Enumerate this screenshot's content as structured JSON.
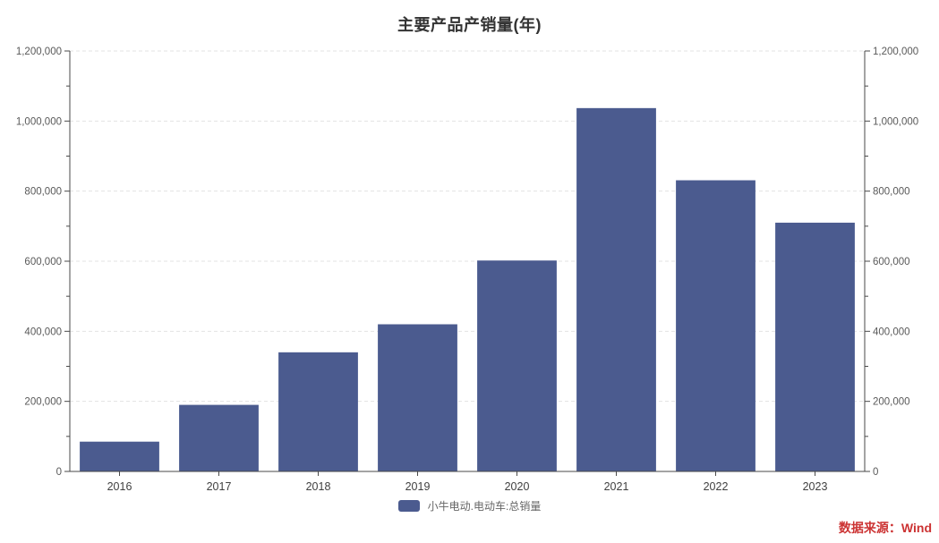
{
  "header": {
    "title": "主要产品产销量(年)"
  },
  "legend": {
    "label": "小牛电动.电动车:总销量"
  },
  "source": {
    "text": "数据来源：Wind"
  },
  "colors": {
    "bar": "#4b5b8f",
    "axis": "#4a4a4a",
    "grid": "#e3e3e3",
    "tick_label": "#595959",
    "x_label": "#3f3f3f",
    "title": "#333333",
    "legend_text": "#666666",
    "source_text": "#cc3333",
    "background": "#ffffff"
  },
  "chart_data": {
    "type": "bar",
    "title": "主要产品产销量(年)",
    "categories": [
      "2016",
      "2017",
      "2018",
      "2019",
      "2020",
      "2021",
      "2022",
      "2023"
    ],
    "series": [
      {
        "name": "小牛电动.电动车:总销量",
        "values": [
          85000,
          190000,
          340000,
          420000,
          602000,
          1037000,
          831000,
          710000
        ]
      }
    ],
    "xlabel": "",
    "ylabel": "",
    "ylim": [
      0,
      1200000
    ],
    "ytick_values": [
      0,
      200000,
      400000,
      600000,
      800000,
      1000000,
      1200000
    ],
    "ytick_labels": [
      "0",
      "200,000",
      "400,000",
      "600,000",
      "800,000",
      "1,000,000",
      "1,200,000"
    ],
    "ytick_minor_step": 100000,
    "grid": "horizontal-dashed-at-major-ticks",
    "dual_y_axis": true,
    "legend_position": "bottom-center",
    "bar_width_ratio": 0.8
  }
}
